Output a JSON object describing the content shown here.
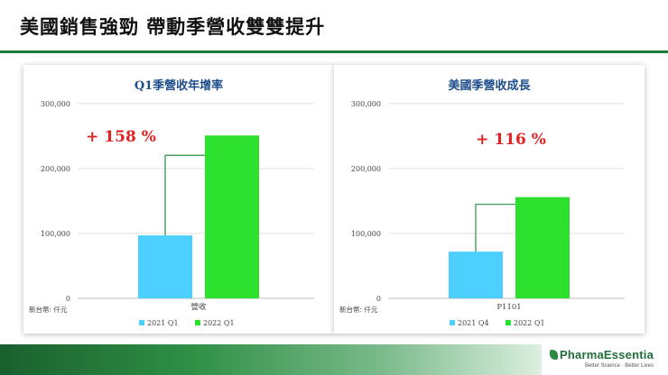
{
  "slide": {
    "title": "美國銷售強勁 帶動季營收雙雙提升",
    "logo_name": "PharmaEssentia",
    "logo_tagline": "Better Science · Better Lives"
  },
  "colors": {
    "accent_green": "#1e7a3a",
    "series_light_blue": "#4dcfff",
    "series_green": "#2ee02e",
    "growth_red": "#e02222",
    "title_blue": "#1f4e8c"
  },
  "chart_data": [
    {
      "type": "bar",
      "title": "Q1季營收年增率",
      "unit_label": "新台幣: 仟元",
      "categories": [
        "營收"
      ],
      "series": [
        {
          "name": "2021 Q1",
          "values": [
            97000
          ],
          "color": "#4dcfff"
        },
        {
          "name": "2022 Q1",
          "values": [
            251000
          ],
          "color": "#2ee02e"
        }
      ],
      "ylim": [
        0,
        300000
      ],
      "yticks": [
        "0",
        "100,000",
        "200,000",
        "300,000"
      ],
      "ytick_values": [
        0,
        100000,
        200000,
        300000
      ],
      "annotation": "+ 158 %",
      "grid": true,
      "legend": "bottom"
    },
    {
      "type": "bar",
      "title": "美國季營收成長",
      "unit_label": "新台幣: 仟元",
      "categories": [
        "P1101"
      ],
      "series": [
        {
          "name": "2021 Q4",
          "values": [
            72000
          ],
          "color": "#4dcfff"
        },
        {
          "name": "2022 Q1",
          "values": [
            156000
          ],
          "color": "#2ee02e"
        }
      ],
      "ylim": [
        0,
        300000
      ],
      "yticks": [
        "0",
        "100,000",
        "200,000",
        "300,000"
      ],
      "ytick_values": [
        0,
        100000,
        200000,
        300000
      ],
      "annotation": "+ 116 %",
      "grid": true,
      "legend": "bottom"
    }
  ]
}
